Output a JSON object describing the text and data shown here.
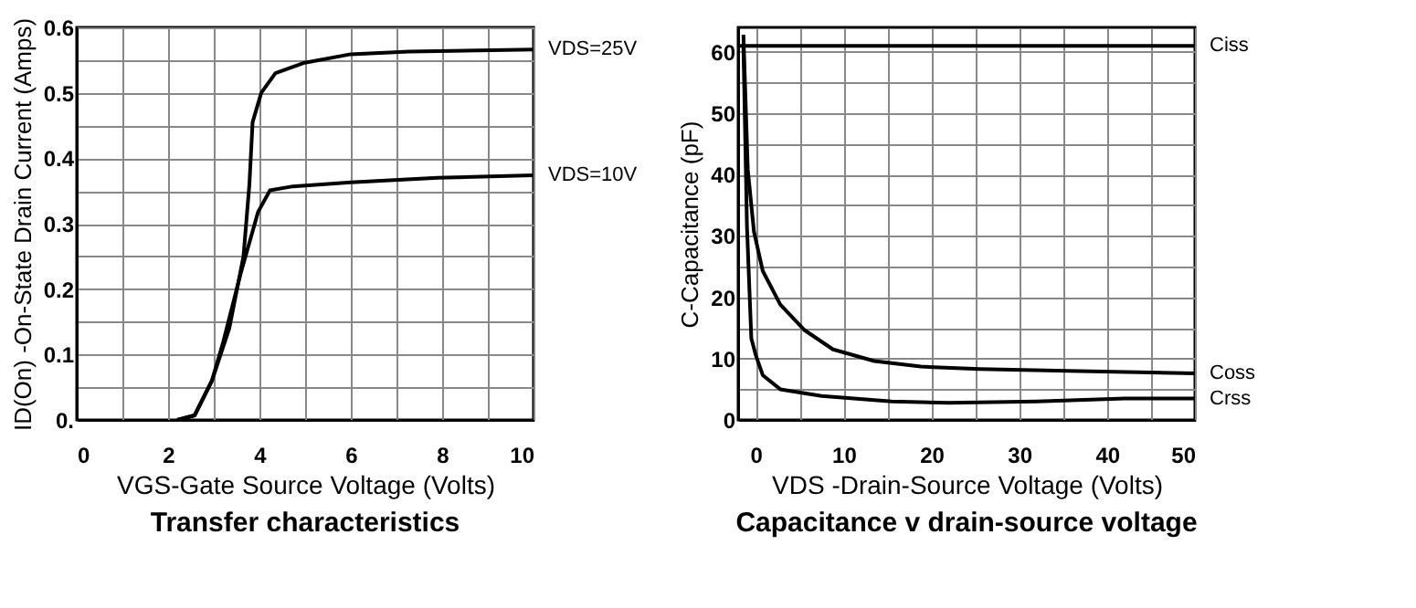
{
  "chart_data": [
    {
      "type": "line",
      "title": "Transfer characteristics",
      "xlabel": "VGS-Gate Source Voltage (Volts)",
      "ylabel": "ID(On) -On-State Drain Current (Amps)",
      "xlim": [
        0,
        10
      ],
      "ylim": [
        0,
        0.6
      ],
      "xticks": [
        0,
        {
          "value": 1,
          "label": null
        },
        2,
        {
          "value": 3,
          "label": null
        },
        4,
        {
          "value": 5,
          "label": null
        },
        6,
        {
          "value": 7,
          "label": null
        },
        8,
        {
          "value": 9,
          "label": null
        },
        10
      ],
      "yticks": [
        {
          "value": 0,
          "label": "0."
        },
        {
          "value": 0.05,
          "label": null
        },
        0.1,
        {
          "value": 0.15,
          "label": null
        },
        0.2,
        {
          "value": 0.25,
          "label": null
        },
        0.3,
        {
          "value": 0.35,
          "label": null
        },
        0.4,
        {
          "value": 0.45,
          "label": null
        },
        0.5,
        {
          "value": 0.55,
          "label": null
        },
        0.6
      ],
      "grid": true,
      "marker": "none",
      "line_style": "solid",
      "series": [
        {
          "name": "VDS=25V",
          "color": "#000000",
          "x": [
            2.2,
            2.58,
            2.96,
            3.34,
            3.65,
            3.78,
            3.85,
            4.04,
            4.35,
            4.99,
            6.0,
            7.27,
            10
          ],
          "values": [
            0,
            0.007,
            0.06,
            0.14,
            0.25,
            0.36,
            0.455,
            0.5,
            0.53,
            0.546,
            0.559,
            0.563,
            0.566
          ]
        },
        {
          "name": "VDS=10V",
          "color": "#000000",
          "x": [
            2.2,
            2.58,
            2.96,
            3.21,
            3.59,
            3.97,
            4.23,
            4.73,
            6.0,
            7.9,
            10
          ],
          "values": [
            0,
            0.007,
            0.06,
            0.12,
            0.224,
            0.318,
            0.351,
            0.357,
            0.363,
            0.37,
            0.374
          ]
        }
      ]
    },
    {
      "type": "line",
      "title": "Capacitance v drain-source voltage",
      "xlabel": "VDS -Drain-Source Voltage (Volts)",
      "ylabel": "C-Capacitance (pF)",
      "xlim": [
        -2,
        50
      ],
      "ylim": [
        0,
        64
      ],
      "xticks": [
        0,
        {
          "value": 5,
          "label": null
        },
        10,
        {
          "value": 15,
          "label": null
        },
        20,
        {
          "value": 25,
          "label": null
        },
        30,
        {
          "value": 35,
          "label": null
        },
        40,
        {
          "value": 45,
          "label": null
        },
        50
      ],
      "yticks": [
        0,
        {
          "value": 5,
          "label": null
        },
        10,
        {
          "value": 15,
          "label": null
        },
        20,
        {
          "value": 25,
          "label": null
        },
        30,
        {
          "value": 35,
          "label": null
        },
        40,
        {
          "value": 45,
          "label": null
        },
        50,
        {
          "value": 55,
          "label": null
        },
        60
      ],
      "grid": true,
      "marker": "none",
      "line_style": "solid",
      "series": [
        {
          "name": "Ciss",
          "color": "#000000",
          "x": [
            -2,
            50
          ],
          "values": [
            61,
            61
          ]
        },
        {
          "name": "Coss",
          "color": "#000000",
          "x": [
            -1.4,
            -0.9,
            -0.2,
            0.8,
            2.8,
            5.5,
            8.8,
            13.5,
            18.8,
            25.5,
            35.5,
            50
          ],
          "values": [
            62.8,
            40.8,
            30.7,
            24.3,
            18.8,
            14.7,
            11.5,
            9.6,
            8.7,
            8.3,
            8.0,
            7.6
          ]
        },
        {
          "name": "Crss",
          "color": "#000000",
          "x": [
            -1.4,
            -1,
            -0.5,
            0,
            0.8,
            2.8,
            7.5,
            15.5,
            22,
            32,
            42,
            50
          ],
          "values": [
            61,
            31.7,
            13.3,
            10.6,
            7.3,
            5.0,
            3.9,
            3.0,
            2.8,
            3.0,
            3.5,
            3.5
          ]
        }
      ]
    }
  ]
}
